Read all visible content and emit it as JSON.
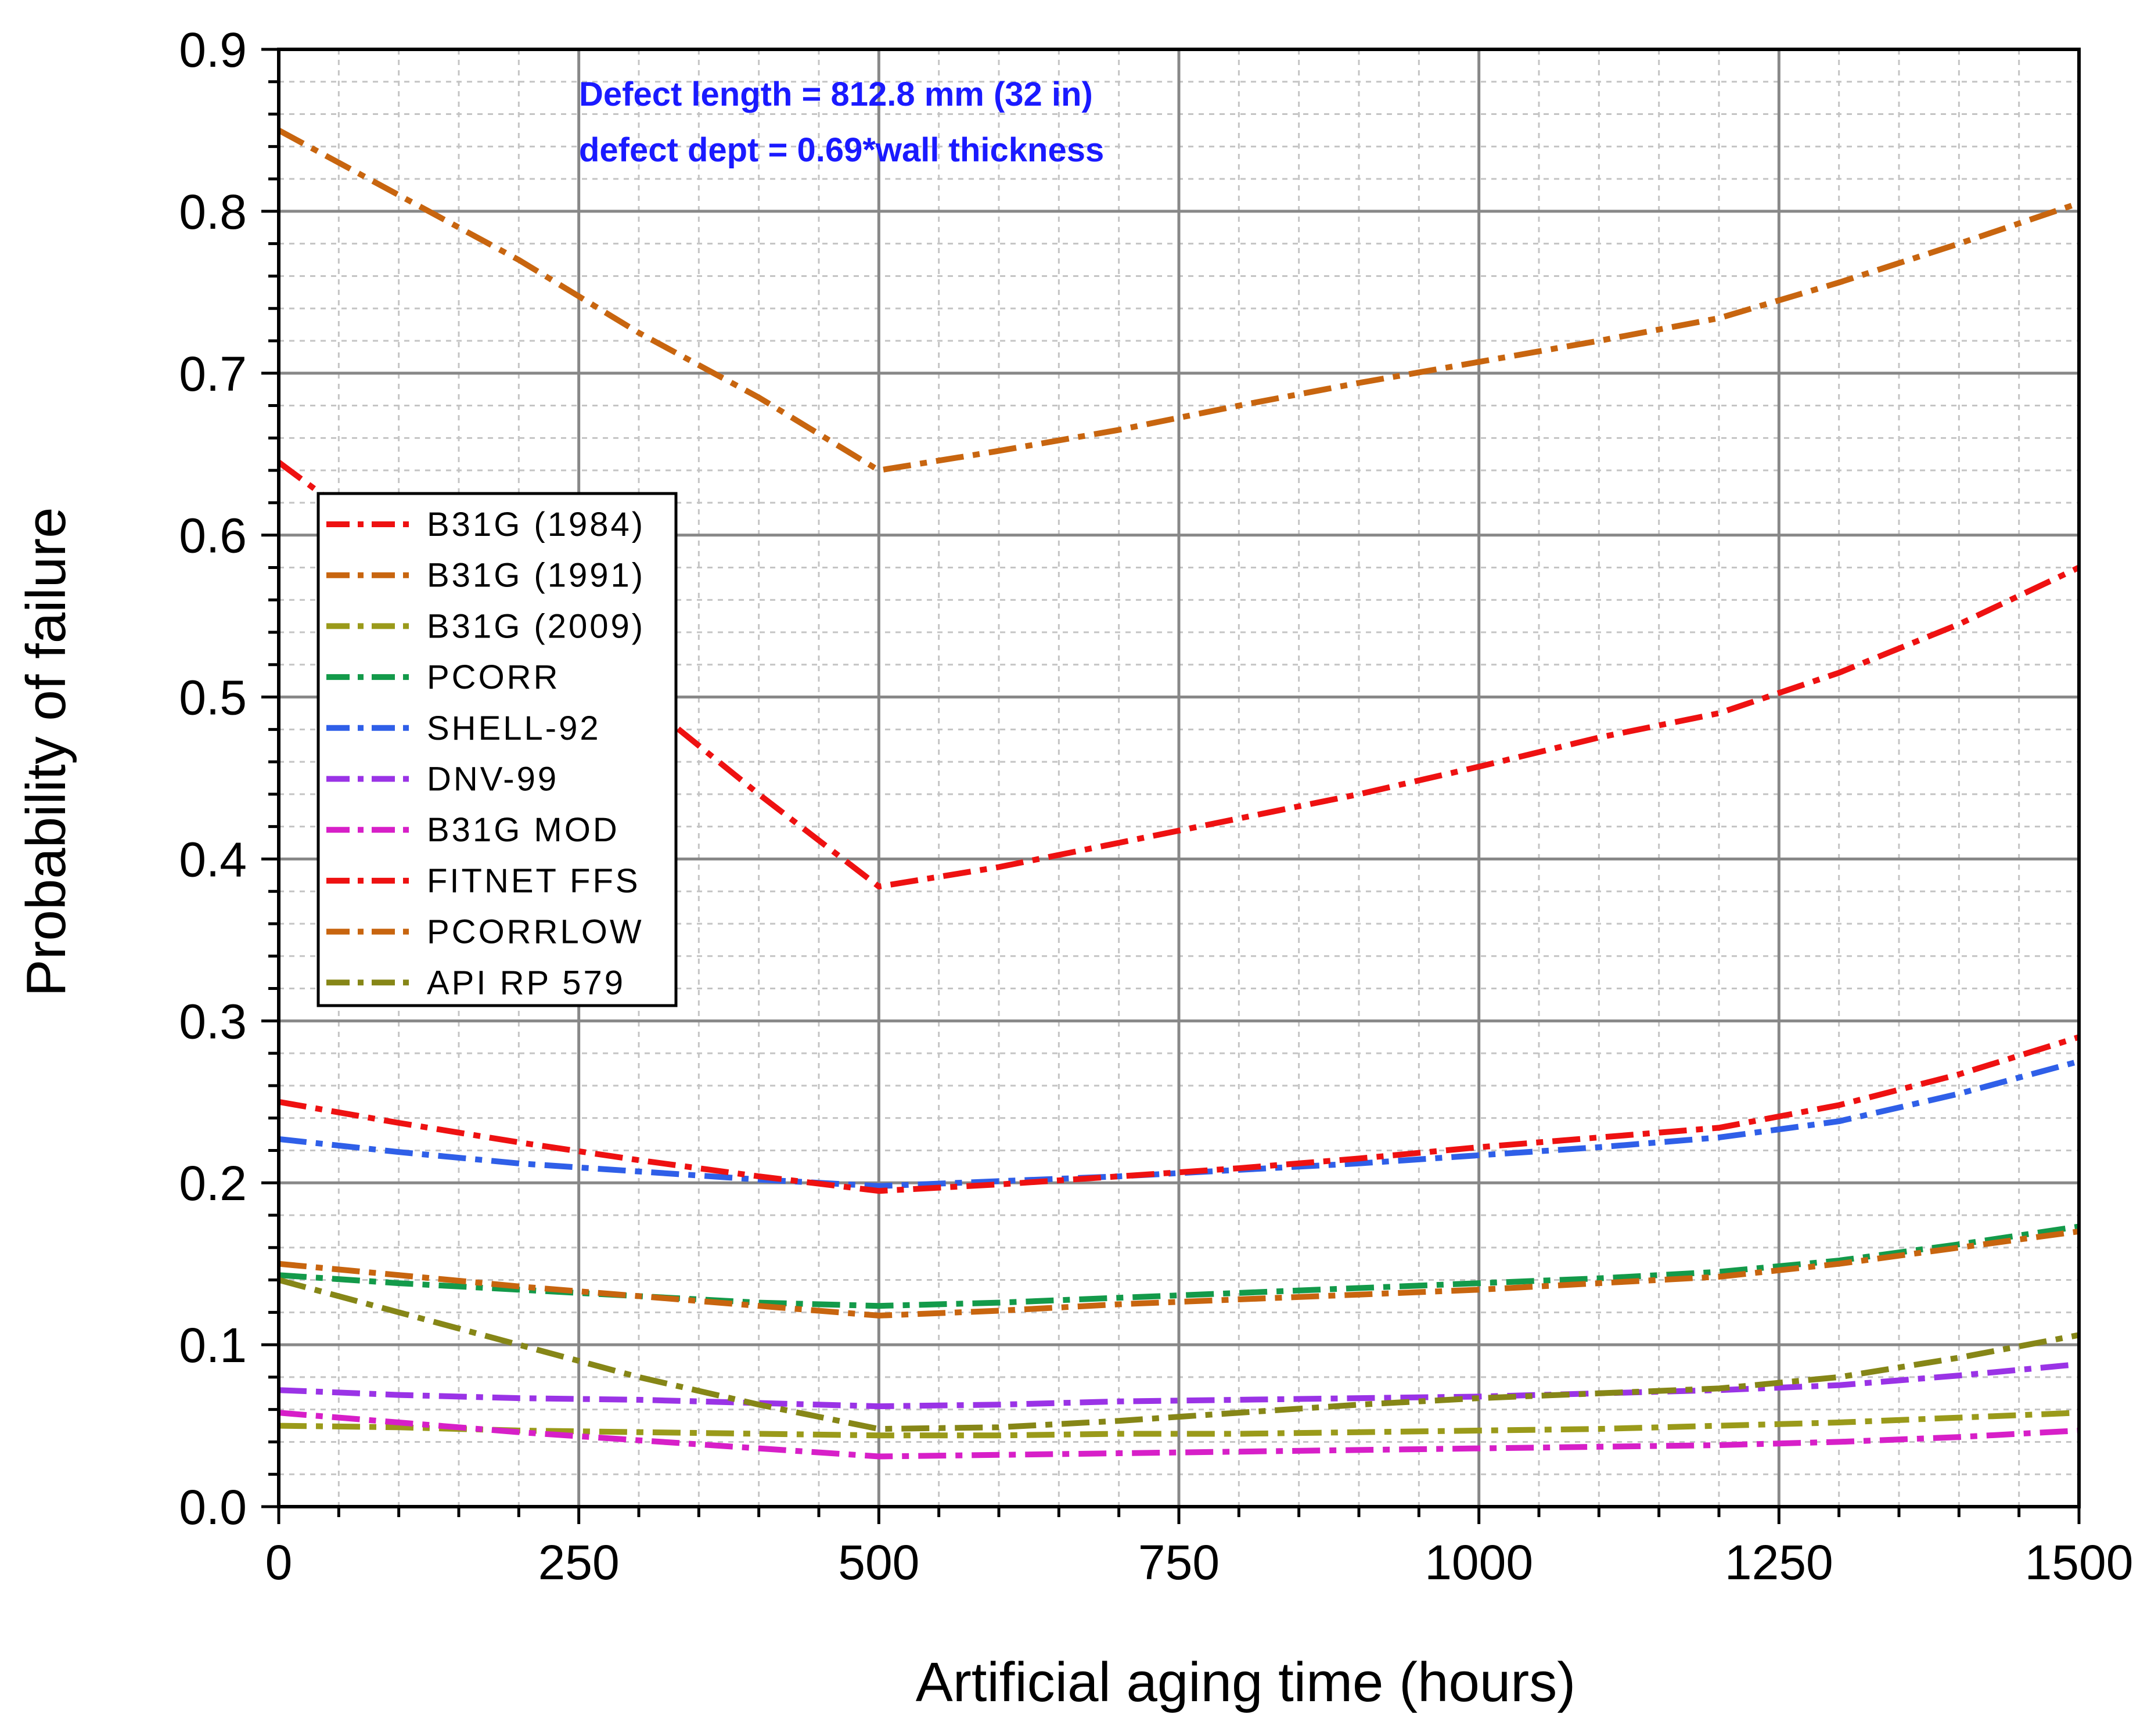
{
  "chart_data": {
    "type": "line",
    "title": "",
    "xlabel": "Artificial aging time (hours)",
    "ylabel": "Probability of failure",
    "xlim": [
      0,
      1500
    ],
    "ylim": [
      0.0,
      0.9
    ],
    "grid": true,
    "legend_position": "upper-left",
    "xticks": [
      0,
      250,
      500,
      750,
      1000,
      1250,
      1500
    ],
    "xtick_labels": [
      "0",
      "250",
      "500",
      "750",
      "1000",
      "1250",
      "1500"
    ],
    "yticks": [
      0.0,
      0.1,
      0.2,
      0.3,
      0.4,
      0.5,
      0.6,
      0.7,
      0.8,
      0.9
    ],
    "ytick_labels": [
      "0.0",
      "0.1",
      "0.2",
      "0.3",
      "0.4",
      "0.5",
      "0.6",
      "0.7",
      "0.8",
      "0.9"
    ],
    "annotations": [
      "Defect length = 812.8 mm (32 in)",
      "defect dept = 0.69*wall thickness"
    ],
    "annotation_color": "#1a1aff",
    "legend_entries": [
      {
        "label": "B31G (1984)",
        "color": "#ee1111"
      },
      {
        "label": "B31G (1991)",
        "color": "#c8650f"
      },
      {
        "label": "B31G (2009)",
        "color": "#9a9a1a"
      },
      {
        "label": "PCORR",
        "color": "#139a4a"
      },
      {
        "label": "SHELL-92",
        "color": "#2f5fe8"
      },
      {
        "label": "DNV-99",
        "color": "#9a33e6"
      },
      {
        "label": "B31G MOD",
        "color": "#d71fc8"
      },
      {
        "label": "FITNET FFS",
        "color": "#ee1111"
      },
      {
        "label": "PCORRLOW",
        "color": "#c8650f"
      },
      {
        "label": "API RP 579",
        "color": "#868617"
      }
    ],
    "series": [
      {
        "name": "B31G (1984)",
        "color": "#ee1111",
        "x": [
          0,
          100,
          200,
          300,
          400,
          500,
          600,
          700,
          800,
          900,
          1000,
          1100,
          1200,
          1300,
          1400,
          1500
        ],
        "y": [
          0.645,
          0.59,
          0.545,
          0.5,
          0.44,
          0.383,
          0.395,
          0.41,
          0.425,
          0.44,
          0.457,
          0.475,
          0.49,
          0.515,
          0.545,
          0.58
        ]
      },
      {
        "name": "B31G (1991)",
        "color": "#c8650f",
        "x": [
          0,
          100,
          200,
          300,
          400,
          500,
          600,
          700,
          800,
          900,
          1000,
          1100,
          1200,
          1300,
          1400,
          1500
        ],
        "y": [
          0.85,
          0.81,
          0.77,
          0.725,
          0.685,
          0.64,
          0.652,
          0.665,
          0.68,
          0.694,
          0.707,
          0.72,
          0.734,
          0.756,
          0.78,
          0.805
        ]
      },
      {
        "name": "B31G (2009)",
        "color": "#9a9a1a",
        "x": [
          0,
          100,
          200,
          300,
          400,
          500,
          600,
          700,
          800,
          900,
          1000,
          1100,
          1200,
          1300,
          1400,
          1500
        ],
        "y": [
          0.05,
          0.049,
          0.047,
          0.046,
          0.045,
          0.044,
          0.044,
          0.045,
          0.045,
          0.046,
          0.047,
          0.048,
          0.05,
          0.052,
          0.055,
          0.058
        ]
      },
      {
        "name": "PCORR",
        "color": "#139a4a",
        "x": [
          0,
          100,
          200,
          300,
          400,
          500,
          600,
          700,
          800,
          900,
          1000,
          1100,
          1200,
          1300,
          1400,
          1500
        ],
        "y": [
          0.143,
          0.138,
          0.134,
          0.13,
          0.126,
          0.124,
          0.126,
          0.129,
          0.132,
          0.135,
          0.138,
          0.141,
          0.145,
          0.152,
          0.162,
          0.173
        ]
      },
      {
        "name": "SHELL-92",
        "color": "#2f5fe8",
        "x": [
          0,
          100,
          200,
          300,
          400,
          500,
          600,
          700,
          800,
          900,
          1000,
          1100,
          1200,
          1300,
          1400,
          1500
        ],
        "y": [
          0.227,
          0.219,
          0.212,
          0.207,
          0.202,
          0.198,
          0.201,
          0.204,
          0.208,
          0.212,
          0.217,
          0.222,
          0.228,
          0.238,
          0.255,
          0.275
        ]
      },
      {
        "name": "DNV-99",
        "color": "#9a33e6",
        "x": [
          0,
          100,
          200,
          300,
          400,
          500,
          600,
          700,
          800,
          900,
          1000,
          1100,
          1200,
          1300,
          1400,
          1500
        ],
        "y": [
          0.072,
          0.069,
          0.067,
          0.066,
          0.064,
          0.062,
          0.063,
          0.065,
          0.066,
          0.067,
          0.068,
          0.07,
          0.072,
          0.075,
          0.081,
          0.088
        ]
      },
      {
        "name": "B31G MOD",
        "color": "#d71fc8",
        "x": [
          0,
          100,
          200,
          300,
          400,
          500,
          600,
          700,
          800,
          900,
          1000,
          1100,
          1200,
          1300,
          1400,
          1500
        ],
        "y": [
          0.058,
          0.052,
          0.046,
          0.041,
          0.036,
          0.031,
          0.032,
          0.033,
          0.034,
          0.035,
          0.036,
          0.037,
          0.038,
          0.04,
          0.043,
          0.047
        ]
      },
      {
        "name": "FITNET FFS",
        "color": "#ee1111",
        "x": [
          0,
          100,
          200,
          300,
          400,
          500,
          600,
          700,
          800,
          900,
          1000,
          1100,
          1200,
          1300,
          1400,
          1500
        ],
        "y": [
          0.25,
          0.237,
          0.225,
          0.214,
          0.204,
          0.195,
          0.199,
          0.204,
          0.209,
          0.215,
          0.222,
          0.228,
          0.234,
          0.248,
          0.267,
          0.29
        ]
      },
      {
        "name": "PCORRLOW",
        "color": "#c8650f",
        "x": [
          0,
          100,
          200,
          300,
          400,
          500,
          600,
          700,
          800,
          900,
          1000,
          1100,
          1200,
          1300,
          1400,
          1500
        ],
        "y": [
          0.15,
          0.143,
          0.136,
          0.13,
          0.124,
          0.118,
          0.121,
          0.125,
          0.128,
          0.131,
          0.134,
          0.138,
          0.142,
          0.15,
          0.16,
          0.17
        ]
      },
      {
        "name": "API RP 579",
        "color": "#868617",
        "x": [
          0,
          100,
          200,
          300,
          400,
          500,
          600,
          700,
          800,
          900,
          1000,
          1100,
          1200,
          1300,
          1400,
          1500
        ],
        "y": [
          0.14,
          0.12,
          0.1,
          0.08,
          0.063,
          0.048,
          0.049,
          0.053,
          0.058,
          0.063,
          0.067,
          0.07,
          0.073,
          0.08,
          0.092,
          0.106
        ]
      }
    ]
  }
}
